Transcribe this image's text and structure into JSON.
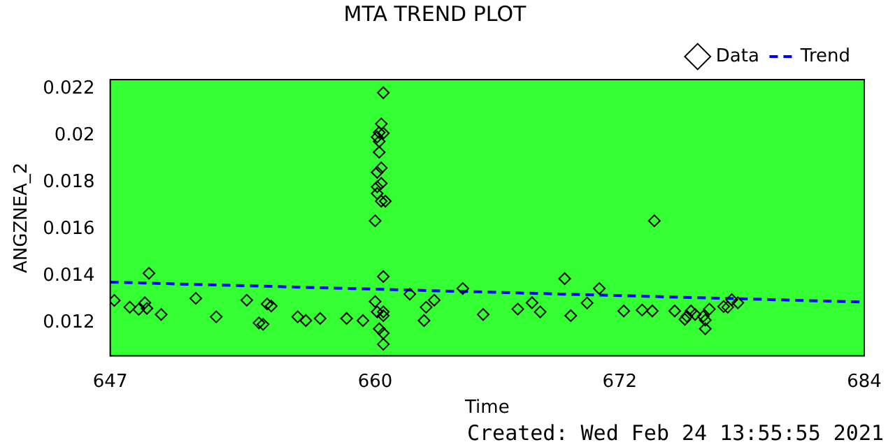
{
  "chart_data": {
    "type": "scatter",
    "title": "MTA TREND PLOT",
    "xlabel": "Time",
    "ylabel": "ANGZNEA_2",
    "annotations": [
      "Created: Wed Feb 24 13:55:55 2021"
    ],
    "xlim": [
      647,
      684
    ],
    "xticks": [
      647,
      660,
      672,
      684
    ],
    "ylim": [
      0.0106,
      0.0224
    ],
    "yticks": [
      0.012,
      0.014,
      0.016,
      0.018,
      0.02,
      0.022
    ],
    "grid": false,
    "legend": "top right",
    "series": [
      {
        "name": "Data",
        "color": "#000000",
        "marker": "diamond",
        "x": [
          647.2,
          647.96,
          648.4,
          648.7,
          648.8,
          648.9,
          649.5,
          651.2,
          652.2,
          653.7,
          654.3,
          654.5,
          654.7,
          654.9,
          656.2,
          656.6,
          657.3,
          658.6,
          659.4,
          660.0,
          660.1,
          660.2,
          660.4,
          660.4,
          660.4,
          660.4,
          660.3,
          660.2,
          660.4,
          660.1,
          660.2,
          660.2,
          660.3,
          660.1,
          660.3,
          660.1,
          660.1,
          660.3,
          660.5,
          660.0,
          660.4,
          660.4,
          661.7,
          662.4,
          662.5,
          662.9,
          664.3,
          665.3,
          667.0,
          667.7,
          668.1,
          669.3,
          669.6,
          670.4,
          671.0,
          672.2,
          673.1,
          673.6,
          673.7,
          674.7,
          675.2,
          675.3,
          675.5,
          675.7,
          676.1,
          676.2,
          676.2,
          676.4,
          677.1,
          677.3,
          677.5,
          677.8
        ],
        "values": [
          0.01297,
          0.01268,
          0.01259,
          0.01287,
          0.01263,
          0.01413,
          0.01237,
          0.01306,
          0.01227,
          0.01298,
          0.01201,
          0.01195,
          0.01282,
          0.01273,
          0.01227,
          0.01211,
          0.0122,
          0.0122,
          0.01211,
          0.01292,
          0.01248,
          0.01176,
          0.01232,
          0.01157,
          0.0111,
          0.02184,
          0.02051,
          0.02014,
          0.02011,
          0.01995,
          0.01976,
          0.0193,
          0.01863,
          0.01844,
          0.01797,
          0.01782,
          0.01754,
          0.01721,
          0.01721,
          0.01637,
          0.01399,
          0.01248,
          0.01324,
          0.01211,
          0.01268,
          0.01298,
          0.01348,
          0.01237,
          0.0126,
          0.01287,
          0.01248,
          0.0139,
          0.01232,
          0.01286,
          0.01348,
          0.01252,
          0.01256,
          0.01252,
          0.01637,
          0.01252,
          0.01216,
          0.01229,
          0.01252,
          0.01237,
          0.01229,
          0.01213,
          0.01176,
          0.0126,
          0.01271,
          0.01268,
          0.013,
          0.01287
        ]
      },
      {
        "name": "Trend",
        "type": "line",
        "color": "#0000ff",
        "line_style": "dashed",
        "marker": "none",
        "x": [
          647,
          684
        ],
        "values": [
          0.01375,
          0.0129
        ]
      }
    ]
  }
}
